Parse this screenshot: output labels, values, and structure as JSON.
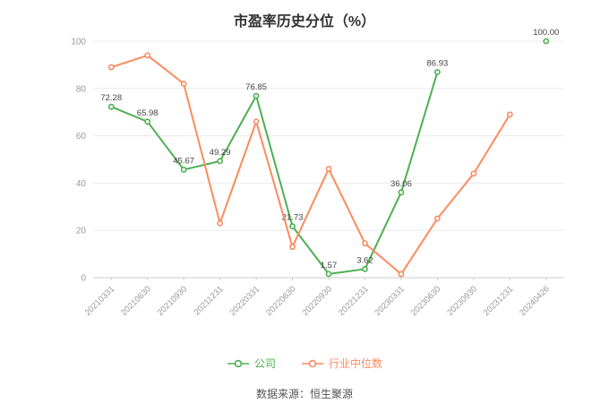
{
  "title": "市盈率历史分位（%）",
  "footer": "数据来源：恒生聚源",
  "colors": {
    "company": "#4cb050",
    "industry_median": "#fc8a5e",
    "grid": "#ececec",
    "axis": "#cccccc",
    "tick_text": "#999999",
    "value_label": "#444444"
  },
  "legend": [
    {
      "id": "company",
      "label": "公司",
      "color": "#4cb050"
    },
    {
      "id": "industry-median",
      "label": "行业中位数",
      "color": "#fc8a5e"
    }
  ],
  "chart_data": {
    "type": "line",
    "title": "市盈率历史分位（%）",
    "xlabel": "",
    "ylabel": "",
    "ylim": [
      0,
      100
    ],
    "yticks": [
      0,
      20,
      40,
      60,
      80,
      100
    ],
    "grid": true,
    "legend_position": "bottom",
    "categories": [
      "20210331",
      "20210630",
      "20210930",
      "20211231",
      "20220331",
      "20220630",
      "20220930",
      "20221231",
      "20230331",
      "20230630",
      "20230930",
      "20231231",
      "20240426"
    ],
    "series": [
      {
        "id": "company",
        "name": "公司",
        "color": "#4cb050",
        "values": [
          72.28,
          65.98,
          45.67,
          49.29,
          76.85,
          21.73,
          1.57,
          3.62,
          36.06,
          86.93,
          null,
          null,
          100.0
        ],
        "labels": [
          "72.28",
          "65.98",
          "45.67",
          "49.29",
          "76.85",
          "21.73",
          "1.57",
          "3.62",
          "36.06",
          "86.93",
          null,
          null,
          "100.00"
        ]
      },
      {
        "id": "industry-median",
        "name": "行业中位数",
        "color": "#fc8a5e",
        "values": [
          89,
          94,
          82,
          23,
          66,
          13,
          46,
          14.5,
          1.5,
          25,
          44,
          69,
          null
        ],
        "labels": null
      }
    ]
  }
}
